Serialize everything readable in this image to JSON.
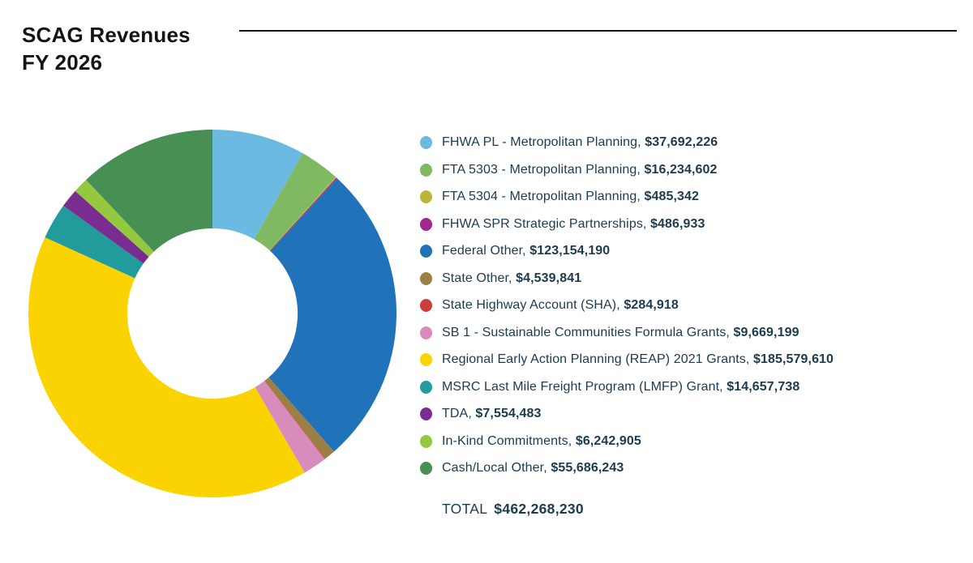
{
  "page": {
    "title_line1": "SCAG Revenues",
    "title_line2": "FY 2026"
  },
  "legend": {
    "separator": ", "
  },
  "total": {
    "label": "TOTAL",
    "value": "$462,268,230"
  },
  "chart_data": {
    "type": "pie",
    "subtype": "donut",
    "title": "SCAG Revenues FY 2026",
    "start_angle_deg": 0,
    "direction": "clockwise",
    "inner_radius_ratio": 0.463,
    "total_value": 462268230,
    "total_display": "$462,268,230",
    "legend_position": "right",
    "segments": [
      {
        "label": "FHWA PL - Metropolitan Planning",
        "value": 37692226,
        "display": "$37,692,226",
        "color": "#6cb9e2"
      },
      {
        "label": "FTA 5303 - Metropolitan Planning",
        "value": 16234602,
        "display": "$16,234,602",
        "color": "#7fba63"
      },
      {
        "label": "FTA 5304 - Metropolitan Planning",
        "value": 485342,
        "display": "$485,342",
        "color": "#bdb43c"
      },
      {
        "label": "FHWA SPR Strategic Partnerships",
        "value": 486933,
        "display": "$486,933",
        "color": "#a3268e"
      },
      {
        "label": "Federal Other",
        "value": 123154190,
        "display": "$123,154,190",
        "color": "#2173b9"
      },
      {
        "label": "State Other",
        "value": 4539841,
        "display": "$4,539,841",
        "color": "#9c7f45"
      },
      {
        "label": "State Highway Account (SHA)",
        "value": 284918,
        "display": "$284,918",
        "color": "#cc3e3e"
      },
      {
        "label": "SB 1 - Sustainable Communities Formula Grants",
        "value": 9669199,
        "display": "$9,669,199",
        "color": "#d88cbb"
      },
      {
        "label": "Regional Early Action Planning (REAP) 2021 Grants",
        "value": 185579610,
        "display": "$185,579,610",
        "color": "#fbd303"
      },
      {
        "label": "MSRC Last Mile Freight Program (LMFP) Grant",
        "value": 14657738,
        "display": "$14,657,738",
        "color": "#219b9b"
      },
      {
        "label": "TDA",
        "value": 7554483,
        "display": "$7,554,483",
        "color": "#7a2d90"
      },
      {
        "label": "In-Kind Commitments",
        "value": 6242905,
        "display": "$6,242,905",
        "color": "#94c83e"
      },
      {
        "label": "Cash/Local Other",
        "value": 55686243,
        "display": "$55,686,243",
        "color": "#478f52"
      }
    ]
  }
}
